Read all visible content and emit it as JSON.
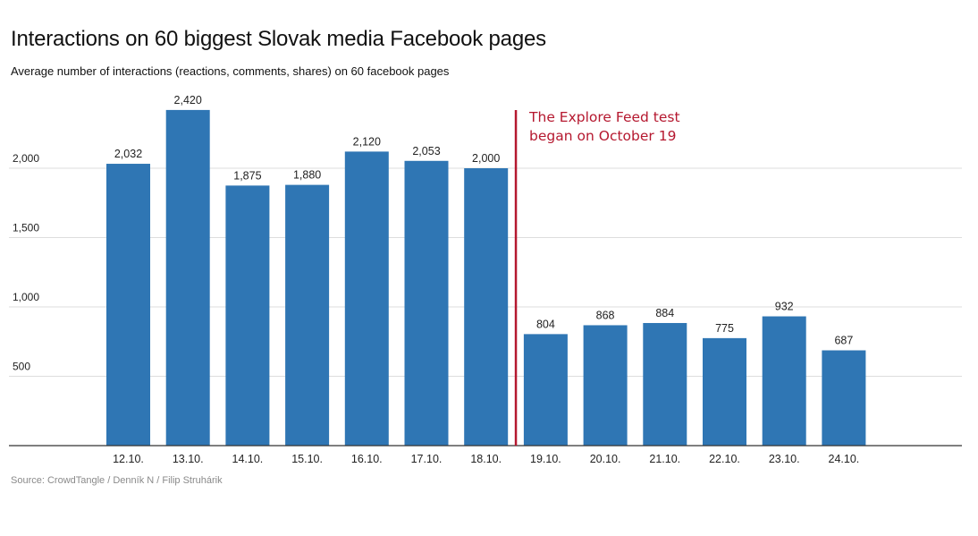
{
  "title": "Interactions on 60 biggest Slovak media Facebook pages",
  "subtitle": "Average number of interactions (reactions, comments, shares) on 60 facebook pages",
  "source": "Source: CrowdTangle / Denník N / Filip Struhárik",
  "colors": {
    "bar": "#2f76b4",
    "marker": "#b5182f",
    "grid": "#dddddd",
    "axis": "#333333"
  },
  "chart_data": {
    "type": "bar",
    "categories": [
      "12.10.",
      "13.10.",
      "14.10.",
      "15.10.",
      "16.10.",
      "17.10.",
      "18.10.",
      "19.10.",
      "20.10.",
      "21.10.",
      "22.10.",
      "23.10.",
      "24.10."
    ],
    "values": [
      2032,
      2420,
      1875,
      1880,
      2120,
      2053,
      2000,
      804,
      868,
      884,
      775,
      932,
      687
    ],
    "value_labels": [
      "2,032",
      "2,420",
      "1,875",
      "1,880",
      "2,120",
      "2,053",
      "2,000",
      "804",
      "868",
      "884",
      "775",
      "932",
      "687"
    ],
    "yticks": [
      500,
      1000,
      1500,
      2000
    ],
    "ytick_labels": [
      "500",
      "1,000",
      "1,500",
      "2,000"
    ],
    "ylim": [
      0,
      2500
    ],
    "grid": true,
    "legend": "none",
    "annotation": {
      "after_category": "18.10.",
      "lines": [
        "The Explore Feed test",
        "began on October 19"
      ]
    }
  }
}
